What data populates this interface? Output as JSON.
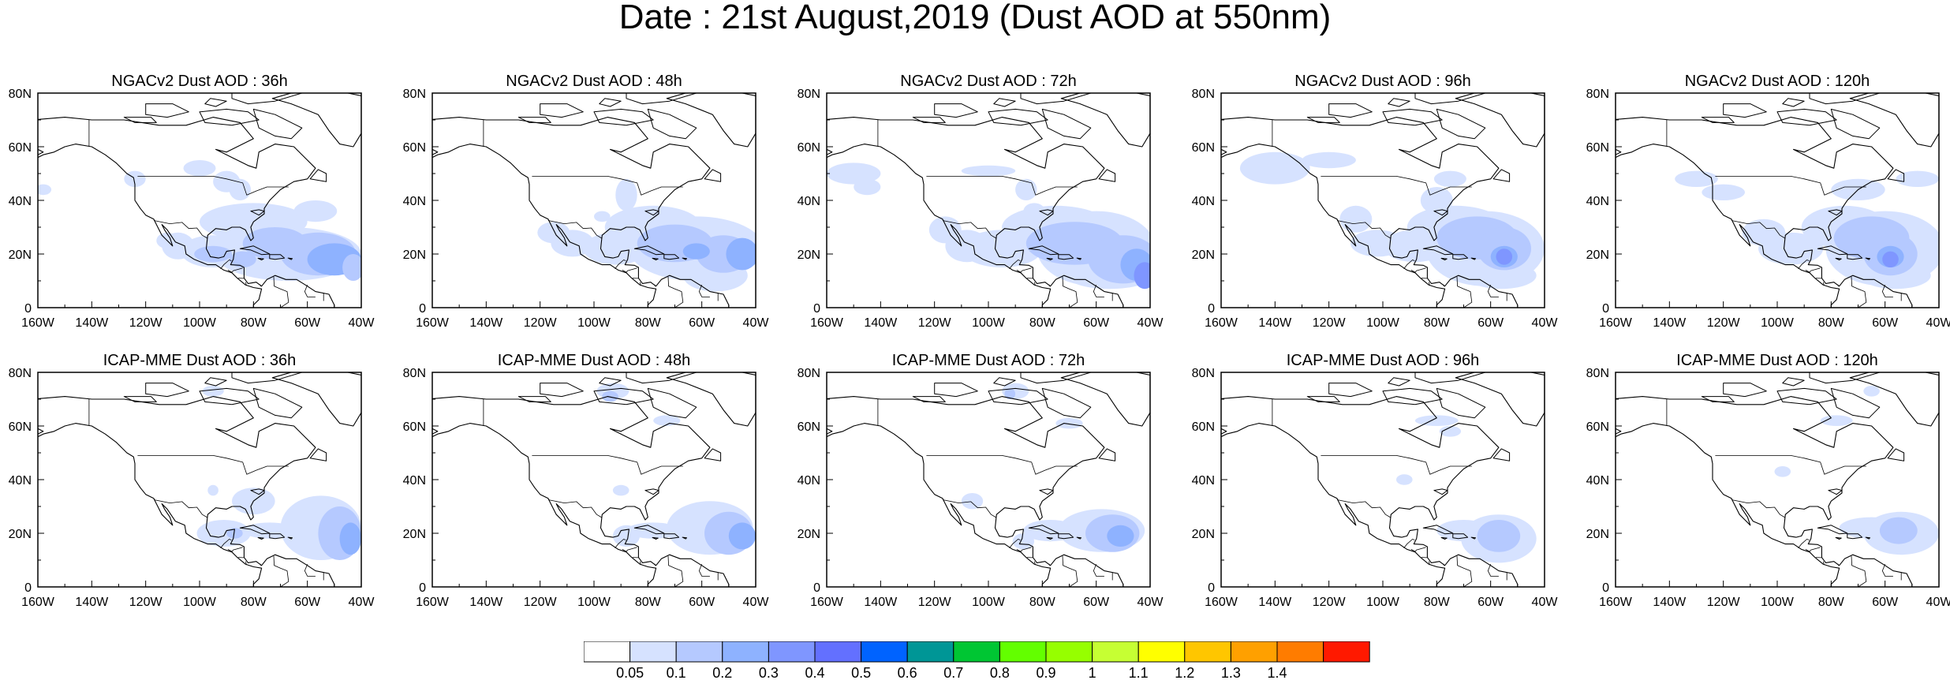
{
  "title": "Date : 21st August,2019 (Dust AOD at 550nm)",
  "map": {
    "lon_range": [
      -160,
      -40
    ],
    "lat_range": [
      0,
      80
    ],
    "x_tick_labels": [
      "160W",
      "140W",
      "120W",
      "100W",
      "80W",
      "60W",
      "40W"
    ],
    "y_tick_labels": [
      "0",
      "20N",
      "40N",
      "60N",
      "80N"
    ],
    "land_outline_color": "#000000"
  },
  "panels": [
    {
      "title": "NGACv2 Dust AOD : 36h"
    },
    {
      "title": "NGACv2 Dust AOD : 48h"
    },
    {
      "title": "NGACv2 Dust AOD : 72h"
    },
    {
      "title": "NGACv2 Dust AOD : 96h"
    },
    {
      "title": "NGACv2 Dust AOD : 120h"
    },
    {
      "title": "ICAP-MME Dust AOD : 36h"
    },
    {
      "title": "ICAP-MME Dust AOD : 48h"
    },
    {
      "title": "ICAP-MME Dust AOD : 72h"
    },
    {
      "title": "ICAP-MME Dust AOD : 96h"
    },
    {
      "title": "ICAP-MME Dust AOD : 120h"
    }
  ],
  "colorbar": {
    "labels": [
      "0.05",
      "0.1",
      "0.2",
      "0.3",
      "0.4",
      "0.5",
      "0.6",
      "0.7",
      "0.8",
      "0.9",
      "1",
      "1.1",
      "1.2",
      "1.3",
      "1.4"
    ],
    "colors": [
      "#ffffff",
      "#d6e2ff",
      "#b5c9ff",
      "#8eb2ff",
      "#7f96ff",
      "#6370ff",
      "#0063ff",
      "#009696",
      "#00c633",
      "#63ff00",
      "#96ff00",
      "#c6ff33",
      "#ffff00",
      "#ffc600",
      "#ffa000",
      "#ff7c00",
      "#ff1900"
    ]
  }
}
